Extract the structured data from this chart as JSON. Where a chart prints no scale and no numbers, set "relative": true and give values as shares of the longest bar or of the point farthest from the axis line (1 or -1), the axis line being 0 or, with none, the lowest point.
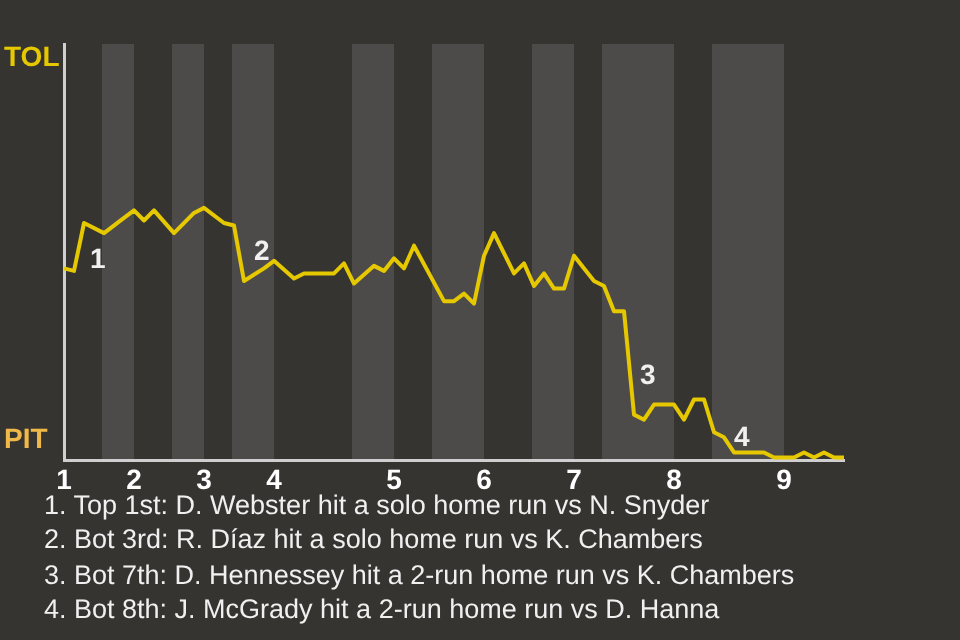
{
  "chart_data": {
    "type": "line",
    "relative": true,
    "tick_labels": "x",
    "categories": [
      "1",
      null,
      null,
      null,
      null,
      null,
      null,
      "2",
      null,
      null,
      null,
      null,
      null,
      null,
      "3",
      null,
      null,
      null,
      null,
      null,
      null,
      "4",
      null,
      null,
      null,
      null,
      null,
      null,
      null,
      null,
      null,
      null,
      null,
      "5",
      null,
      null,
      null,
      null,
      null,
      null,
      null,
      null,
      "6",
      null,
      null,
      null,
      null,
      null,
      null,
      null,
      null,
      "7",
      null,
      null,
      null,
      null,
      null,
      null,
      null,
      null,
      null,
      "8",
      null,
      null,
      null,
      null,
      null,
      null,
      null,
      null,
      null,
      null,
      "9",
      null,
      null,
      null,
      null,
      null,
      null
    ],
    "legend": false,
    "marker": "none",
    "line_style": "solid",
    "series": [
      {
        "color": "#e6c800",
        "values": [
          0.76,
          0.75,
          0.94,
          null,
          0.9,
          null,
          0.96,
          0.99,
          0.95,
          0.99,
          null,
          0.9,
          null,
          0.98,
          1,
          null,
          0.94,
          0.93,
          0.71,
          null,
          0.76,
          0.79,
          null,
          0.72,
          0.74,
          null,
          null,
          0.74,
          0.78,
          0.7,
          null,
          0.77,
          0.75,
          0.8,
          0.76,
          0.85,
          null,
          null,
          0.63,
          0.63,
          0.66,
          0.62,
          0.81,
          0.9,
          null,
          0.74,
          0.78,
          0.69,
          0.74,
          0.68,
          0.68,
          0.81,
          null,
          0.71,
          0.69,
          0.59,
          0.59,
          0.18,
          0.16,
          0.22,
          null,
          0.22,
          0.16,
          0.24,
          0.24,
          0.11,
          0.09,
          0.03,
          null,
          null,
          0.03,
          0.01,
          null,
          0.01,
          0.03,
          0.01,
          0.03,
          0.01,
          0.01
        ]
      }
    ],
    "annotations": [
      "1",
      "2",
      "3",
      "4",
      "TOL",
      "PIT",
      "1. Top 1st: D. Webster hit a solo home run vs N. Snyder",
      "2. Bot 3rd: R. Díaz hit a solo home run vs K. Chambers",
      "3. Bot 7th: D. Hennessey hit a 2-run home run vs K. Chambers",
      "4. Bot 8th: J. McGrady hit a 2-run home run vs D. Hanna"
    ]
  }
}
